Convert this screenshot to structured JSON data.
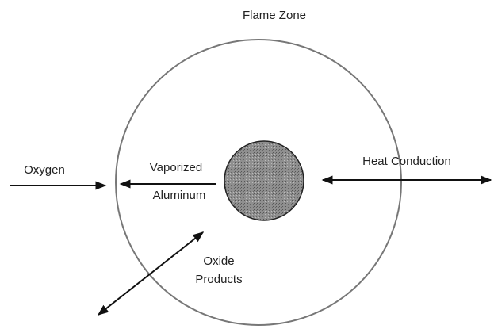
{
  "title": "Flame Zone",
  "labels": {
    "oxygen": "Oxygen",
    "vaporized": "Vaporized",
    "aluminum": "Aluminum",
    "heat_conduction": "Heat Conduction",
    "oxide": "Oxide",
    "products": "Products"
  }
}
